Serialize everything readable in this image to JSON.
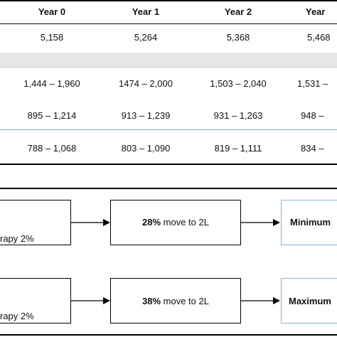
{
  "table": {
    "headers": [
      "Year 0",
      "Year 1",
      "Year 2",
      "Year"
    ],
    "rows": [
      [
        "5,158",
        "5,264",
        "5,368",
        "5,468"
      ],
      [
        "1,444 – 1,960",
        "1474 – 2,000",
        "1,503 – 2,040",
        "1,531 –"
      ],
      [
        "895 – 1,214",
        "913 – 1,239",
        "931 – 1,263",
        "948 –"
      ],
      [
        "788 – 1,068",
        "803 – 1,090",
        "819 – 1,111",
        "834 –"
      ]
    ]
  },
  "flow": {
    "row1": {
      "left_text": "rapy 2%",
      "mid_bold": "28%",
      "mid_rest": " move to 2L",
      "right_text": "Minimum"
    },
    "row2": {
      "left_text": "rapy 2%",
      "mid_bold": "38%",
      "mid_rest": " move to 2L",
      "right_text": "Maximum"
    }
  }
}
